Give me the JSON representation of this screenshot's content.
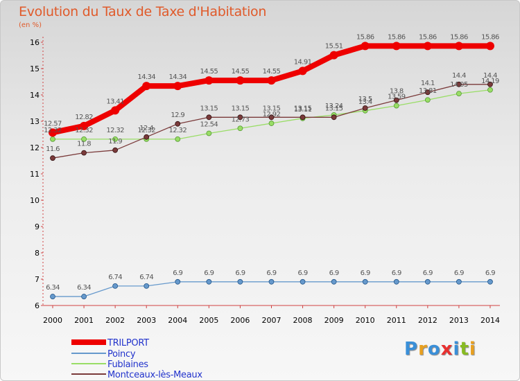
{
  "chart_data": {
    "type": "line",
    "title": "Evolution du Taux de Taxe d'Habitation",
    "subtitle": "(en %)",
    "x": [
      "2000",
      "2001",
      "2002",
      "2003",
      "2004",
      "2005",
      "2006",
      "2007",
      "2008",
      "2009",
      "2010",
      "2011",
      "2012",
      "2013",
      "2014"
    ],
    "ylim": [
      6,
      16
    ],
    "yticks": [
      6,
      7,
      8,
      9,
      10,
      11,
      12,
      13,
      14,
      15,
      16
    ],
    "grid": false,
    "legend_position": "bottom-left",
    "series": [
      {
        "name": "TRILPORT",
        "color": "#ee0000",
        "values": [
          12.57,
          12.82,
          13.41,
          14.34,
          14.34,
          14.55,
          14.55,
          14.55,
          14.91,
          15.51,
          15.86,
          15.86,
          15.86,
          15.86,
          15.86
        ],
        "labels": [
          "12.57",
          "12.82",
          "13.41",
          "14.34",
          "14.34",
          "14.55",
          "14.55",
          "14.55",
          "14.91",
          "15.51",
          "15.86",
          "15.86",
          "15.86",
          "15.86",
          "15.86"
        ]
      },
      {
        "name": "Poincy",
        "color": "#6699cc",
        "values": [
          6.34,
          6.34,
          6.74,
          6.74,
          6.9,
          6.9,
          6.9,
          6.9,
          6.9,
          6.9,
          6.9,
          6.9,
          6.9,
          6.9,
          6.9
        ],
        "labels": [
          "6.34",
          "6.34",
          "6.74",
          "6.74",
          "6.9",
          "6.9",
          "6.9",
          "6.9",
          "6.9",
          "6.9",
          "6.9",
          "6.9",
          "6.9",
          "6.9",
          "6.9"
        ]
      },
      {
        "name": "Fublaines",
        "color": "#99dd66",
        "values": [
          12.32,
          12.32,
          12.32,
          12.32,
          12.32,
          12.54,
          12.73,
          12.92,
          13.11,
          13.24,
          13.4,
          13.59,
          13.81,
          14.05,
          14.19
        ],
        "labels": [
          "12.32",
          "12.32",
          "12.32",
          "12.32",
          "12.32",
          "12.54",
          "12.73",
          "12.92",
          "13.11",
          "13.24",
          "13.4",
          "13.59",
          "13.81",
          "14.05",
          "14.19"
        ]
      },
      {
        "name": "Montceaux-lès-Meaux",
        "color": "#7a3a3a",
        "values": [
          11.6,
          11.8,
          11.9,
          12.4,
          12.9,
          13.15,
          13.15,
          13.15,
          13.15,
          13.15,
          13.5,
          13.8,
          14.1,
          14.4,
          14.4
        ],
        "labels": [
          "11.6",
          "11.8",
          "11.9",
          "12.4",
          "12.9",
          "13.15",
          "13.15",
          "13.15",
          "13.15",
          "13.15",
          "13.5",
          "13.8",
          "14.1",
          "14.4",
          "14.4"
        ]
      }
    ]
  },
  "logo": {
    "letters": [
      "P",
      "r",
      "o",
      "x",
      "i",
      "t",
      "i"
    ],
    "colors": [
      "#3a8fd8",
      "#e8a020",
      "#3a8fd8",
      "#e83030",
      "#3a8fd8",
      "#88bb22",
      "#e8a020"
    ]
  }
}
